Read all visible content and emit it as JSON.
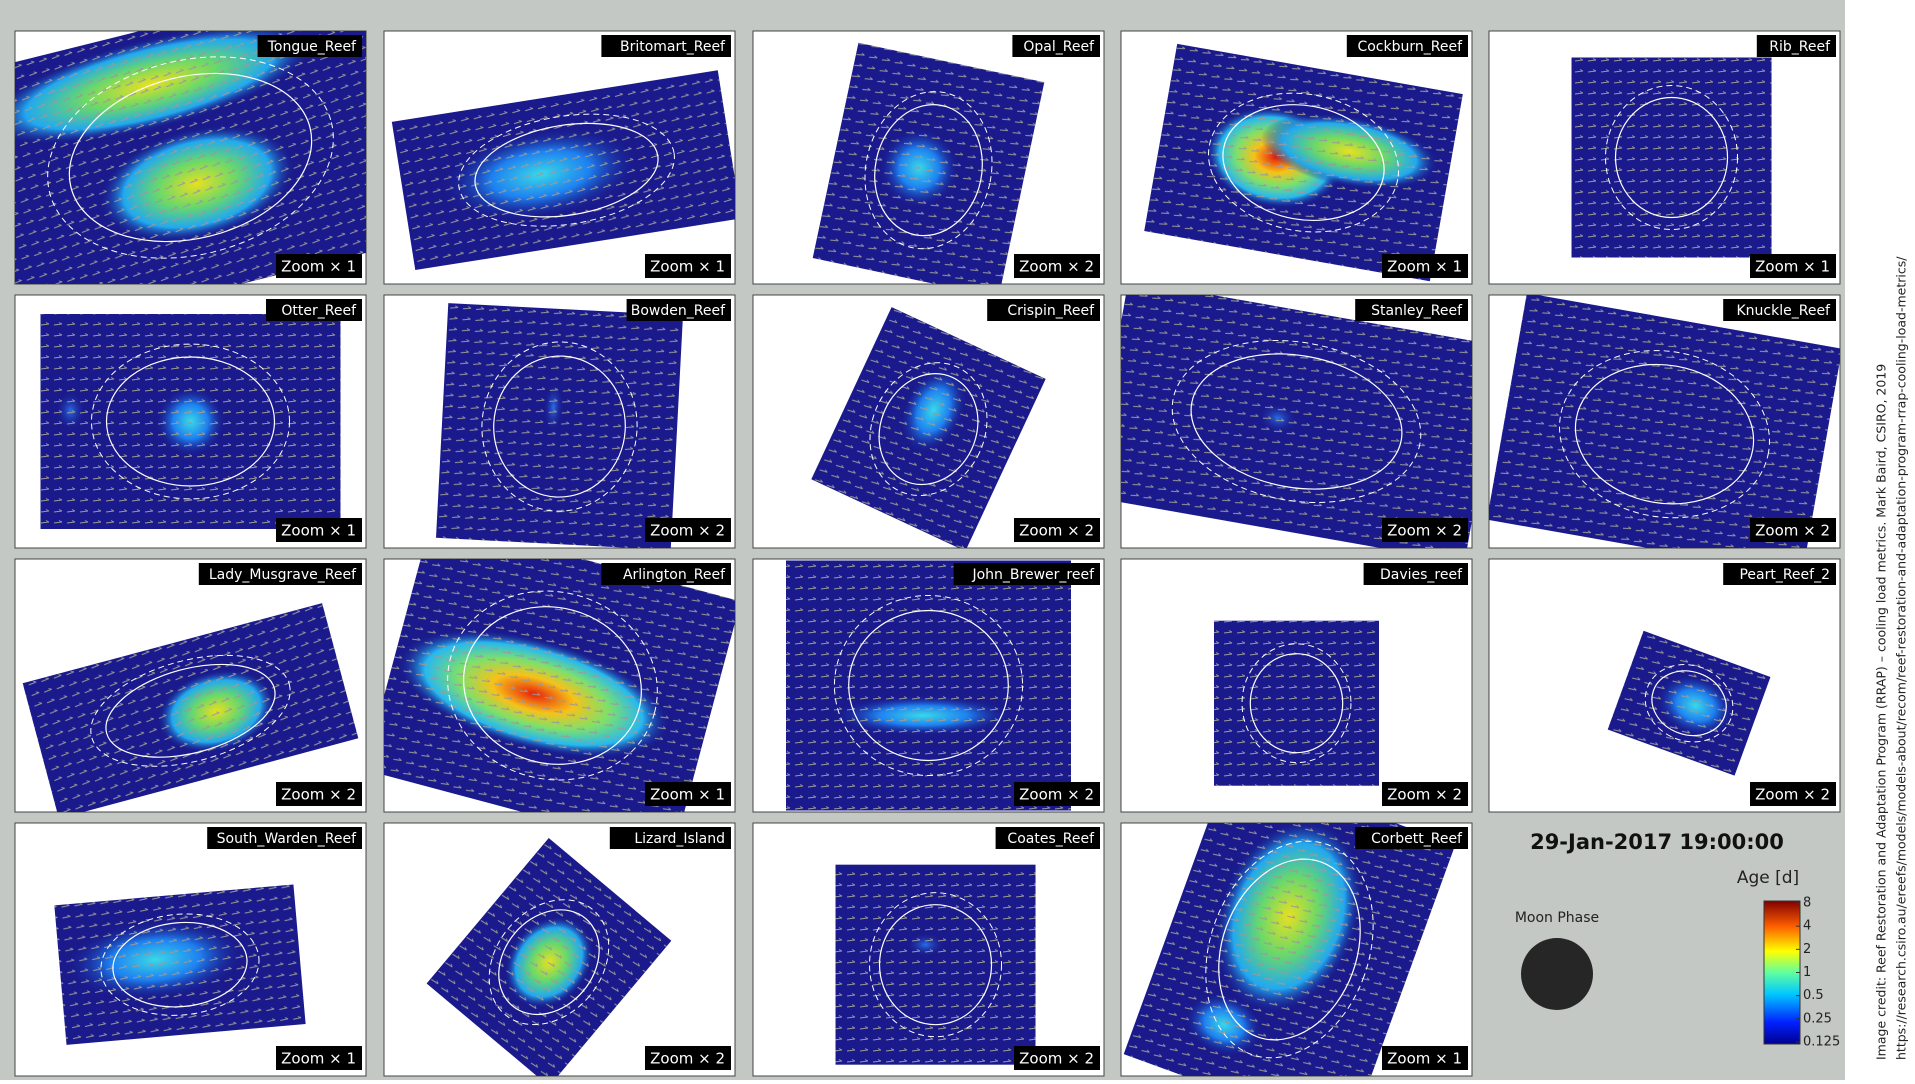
{
  "panels": [
    {
      "name": "Tongue_Reef",
      "zoom": "Zoom × 1"
    },
    {
      "name": "Britomart_Reef",
      "zoom": "Zoom × 1"
    },
    {
      "name": "Opal_Reef",
      "zoom": "Zoom × 2"
    },
    {
      "name": "Cockburn_Reef",
      "zoom": "Zoom × 1"
    },
    {
      "name": "Rib_Reef",
      "zoom": "Zoom × 1"
    },
    {
      "name": "Otter_Reef",
      "zoom": "Zoom × 1"
    },
    {
      "name": "Bowden_Reef",
      "zoom": "Zoom × 2"
    },
    {
      "name": "Crispin_Reef",
      "zoom": "Zoom × 2"
    },
    {
      "name": "Stanley_Reef",
      "zoom": "Zoom × 2"
    },
    {
      "name": "Knuckle_Reef",
      "zoom": "Zoom × 2"
    },
    {
      "name": "Lady_Musgrave_Reef",
      "zoom": "Zoom × 2"
    },
    {
      "name": "Arlington_Reef",
      "zoom": "Zoom × 1"
    },
    {
      "name": "John_Brewer_reef",
      "zoom": "Zoom × 2"
    },
    {
      "name": "Davies_reef",
      "zoom": "Zoom × 2"
    },
    {
      "name": "Peart_Reef_2",
      "zoom": "Zoom × 2"
    },
    {
      "name": "South_Warden_Reef",
      "zoom": "Zoom × 1"
    },
    {
      "name": "Lizard_Island",
      "zoom": "Zoom × 2"
    },
    {
      "name": "Coates_Reef",
      "zoom": "Zoom × 2"
    },
    {
      "name": "Corbett_Reef",
      "zoom": "Zoom × 1"
    }
  ],
  "timestamp": "29-Jan-2017 19:00:00",
  "colorbar": {
    "title": "Age [d]",
    "ticks": [
      "8",
      "4",
      "2",
      "1",
      "0.5",
      "0.25",
      "0.125"
    ]
  },
  "moon_label": "Moon Phase",
  "credit": [
    "Image credit: Reef Restoration and Adaptation Program (RRAP) – cooling load metrics. Mark Baird, CSIRO, 2019",
    "https://research.csiro.au/ereefs/models/models-about/recom/reef-restoration-and-adaptation-program-rrap-cooling-load-metrics/"
  ]
}
